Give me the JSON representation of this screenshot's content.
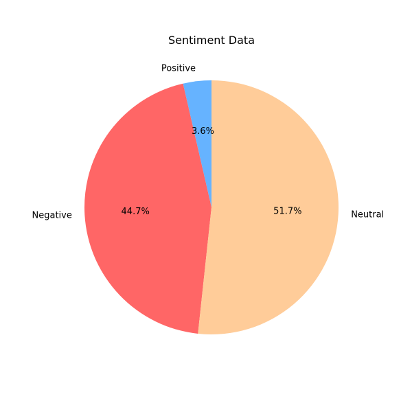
{
  "chart_data": {
    "type": "pie",
    "title": "Sentiment Data",
    "slices": [
      {
        "label": "Positive",
        "value": 3.6,
        "pct_label": "3.6%",
        "color": "#66b3ff"
      },
      {
        "label": "Negative",
        "value": 44.7,
        "pct_label": "44.7%",
        "color": "#ff6666"
      },
      {
        "label": "Neutral",
        "value": 51.7,
        "pct_label": "51.7%",
        "color": "#ffcc99"
      }
    ],
    "start_angle_deg": 90,
    "direction": "counterclockwise"
  }
}
